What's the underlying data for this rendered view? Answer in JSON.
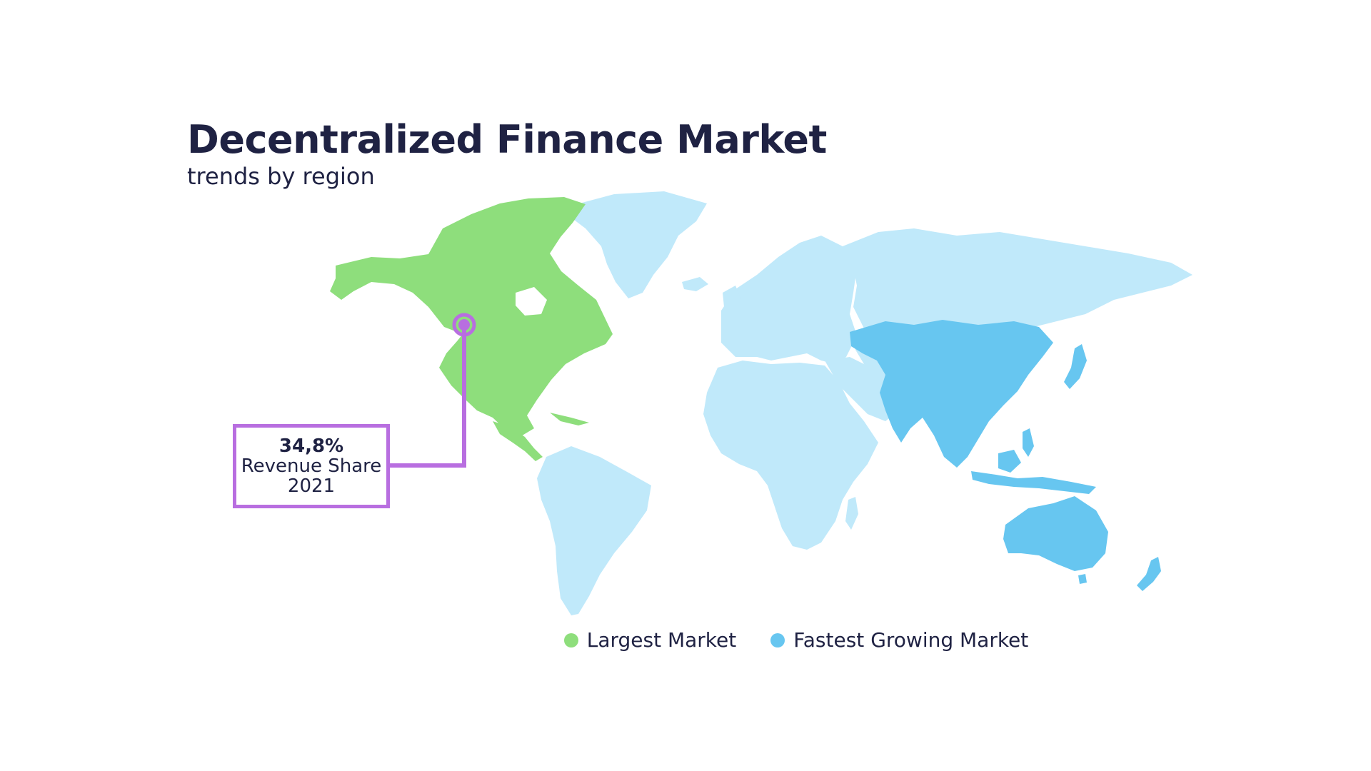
{
  "title": "Decentralized Finance Market",
  "subtitle": "trends by region",
  "colors": {
    "largest": "#8ede7c",
    "fastest": "#67c6f0",
    "other": "#c0e9fa",
    "callout": "#b86ee0",
    "text": "#1f2243"
  },
  "callout": {
    "value": "34,8%",
    "line1": "Revenue Share",
    "line2": "2021"
  },
  "legend": [
    {
      "label": "Largest Market",
      "color": "#8ede7c"
    },
    {
      "label": "Fastest Growing Market",
      "color": "#67c6f0"
    }
  ],
  "regions": [
    {
      "name": "North America",
      "category": "largest"
    },
    {
      "name": "Asia Pacific",
      "category": "fastest"
    },
    {
      "name": "Europe",
      "category": "other"
    },
    {
      "name": "Latin America",
      "category": "other"
    },
    {
      "name": "Middle East & Africa",
      "category": "other"
    }
  ]
}
